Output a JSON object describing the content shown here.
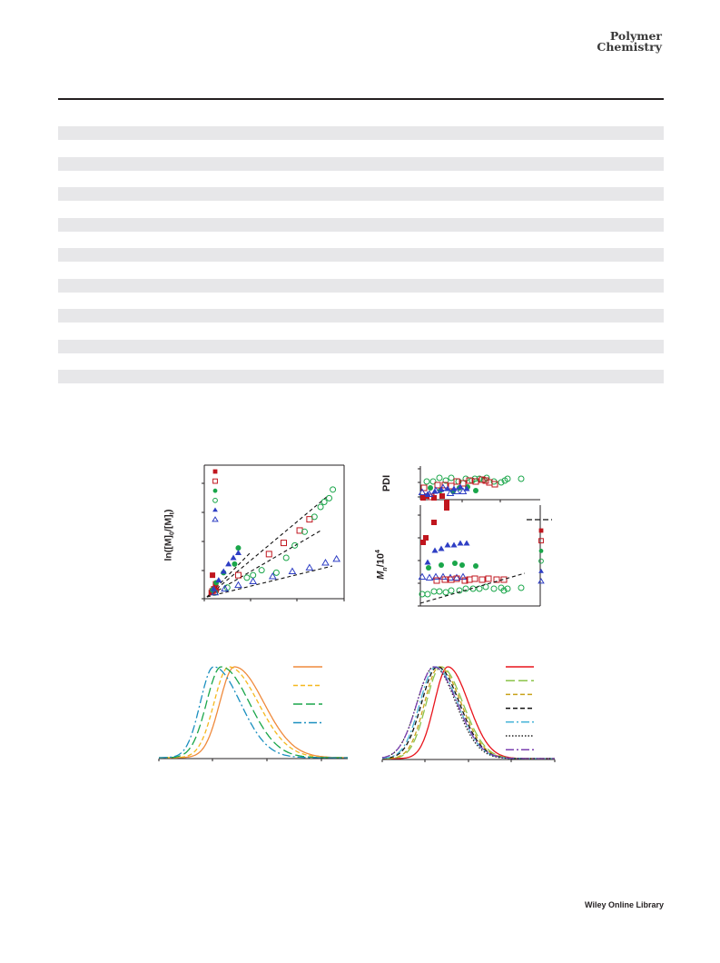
{
  "header": {
    "journal_line1": "Polymer",
    "journal_line2": "Chemistry"
  },
  "footer": {
    "text": "Wiley Online Library"
  },
  "table_bands": 9,
  "chart_data": [
    {
      "type": "scatter",
      "panel": "top-left",
      "ylabel": "ln([M]0/[M]t)",
      "xlim": [
        0,
        10
      ],
      "ylim": [
        0,
        10
      ],
      "grid": false,
      "legend_markers": [
        "filled-square-red",
        "open-square-red",
        "filled-circle-green",
        "open-circle-green",
        "filled-triangle-blue",
        "open-triangle-blue"
      ],
      "series": [
        {
          "marker": "filled-square",
          "color": "#c0161e",
          "x": [
            0.2,
            0.4,
            0.55,
            0.3,
            0.6
          ],
          "y": [
            0.2,
            0.5,
            0.9,
            1.6,
            0.4
          ]
        },
        {
          "marker": "open-square",
          "color": "#c0161e",
          "x": [
            0.3,
            2.4,
            4.9,
            6.1,
            7.4,
            8.2
          ],
          "y": [
            0.3,
            1.6,
            3.3,
            4.2,
            5.2,
            6.1
          ]
        },
        {
          "marker": "filled-circle",
          "color": "#1aa64a",
          "x": [
            0.3,
            0.6,
            1.2,
            2.1,
            2.4
          ],
          "y": [
            0.4,
            1.0,
            1.8,
            2.5,
            3.8
          ]
        },
        {
          "marker": "open-circle",
          "color": "#1aa64a",
          "x": [
            0.5,
            1.5,
            3.1,
            3.6,
            4.3,
            5.5,
            6.3,
            7.0,
            7.8,
            8.6,
            9.1,
            9.4,
            9.8,
            10.1
          ],
          "y": [
            0.2,
            0.6,
            1.4,
            1.6,
            2.0,
            1.8,
            3.0,
            4.0,
            5.1,
            6.3,
            7.1,
            7.5,
            7.8,
            8.5
          ]
        },
        {
          "marker": "filled-triangle",
          "color": "#2e3ec4",
          "x": [
            0.4,
            0.8,
            1.2,
            1.6,
            2.0,
            2.4
          ],
          "y": [
            0.5,
            1.2,
            1.9,
            2.5,
            3.0,
            3.4
          ]
        },
        {
          "marker": "open-triangle",
          "color": "#2e3ec4",
          "x": [
            0.5,
            1.3,
            2.4,
            3.6,
            5.2,
            6.8,
            8.2,
            9.5,
            10.4
          ],
          "y": [
            0.2,
            0.5,
            0.8,
            1.1,
            1.5,
            1.9,
            2.2,
            2.6,
            2.9
          ]
        }
      ]
    },
    {
      "type": "scatter",
      "panel": "top-right",
      "ylabel_upper": "PDI",
      "ylabel_lower": "M",
      "ylabel_lower_sub": "n",
      "ylabel_lower_rest": "/10",
      "ylabel_lower_sup": "4",
      "legend_markers": [
        "filled-square-red",
        "open-square-red",
        "filled-circle-green",
        "open-circle-green",
        "filled-triangle-blue",
        "open-triangle-blue"
      ]
    },
    {
      "type": "line",
      "panel": "bottom-left",
      "legend_lines": [
        "solid-orange",
        "dashed-gold",
        "longdash-green",
        "dashdot-blue"
      ],
      "curves": [
        {
          "color": "#ef8a3c",
          "dash": "",
          "peak": 0.4,
          "width_left": 0.11,
          "width_right": 0.22
        },
        {
          "color": "#f5b81e",
          "dash": "5,3",
          "peak": 0.37,
          "width_left": 0.11,
          "width_right": 0.22
        },
        {
          "color": "#1aa64a",
          "dash": "10,4",
          "peak": 0.33,
          "width_left": 0.11,
          "width_right": 0.21
        },
        {
          "color": "#1a8fbf",
          "dash": "9,3,2,3",
          "peak": 0.29,
          "width_left": 0.1,
          "width_right": 0.2
        }
      ]
    },
    {
      "type": "line",
      "panel": "bottom-right",
      "legend_lines": [
        "solid-red",
        "longdash-lightgreen",
        "dashed-olive",
        "dashed-black",
        "dashdot-cyan",
        "dotted-black",
        "dashdot-purple"
      ],
      "curves": [
        {
          "color": "#e8141c",
          "dash": "",
          "peak": 0.38,
          "width_left": 0.11,
          "width_right": 0.17
        },
        {
          "color": "#8bc34a",
          "dash": "10,4",
          "peak": 0.34,
          "width_left": 0.12,
          "width_right": 0.18
        },
        {
          "color": "#c8a21a",
          "dash": "5,3",
          "peak": 0.33,
          "width_left": 0.12,
          "width_right": 0.18
        },
        {
          "color": "#111111",
          "dash": "5,3",
          "peak": 0.32,
          "width_left": 0.13,
          "width_right": 0.18
        },
        {
          "color": "#46b4d8",
          "dash": "9,3,2,3",
          "peak": 0.31,
          "width_left": 0.13,
          "width_right": 0.18
        },
        {
          "color": "#222222",
          "dash": "1.5,2",
          "peak": 0.3,
          "width_left": 0.14,
          "width_right": 0.18
        },
        {
          "color": "#7a3fb0",
          "dash": "9,3,2,3",
          "peak": 0.3,
          "width_left": 0.14,
          "width_right": 0.19
        }
      ]
    }
  ]
}
